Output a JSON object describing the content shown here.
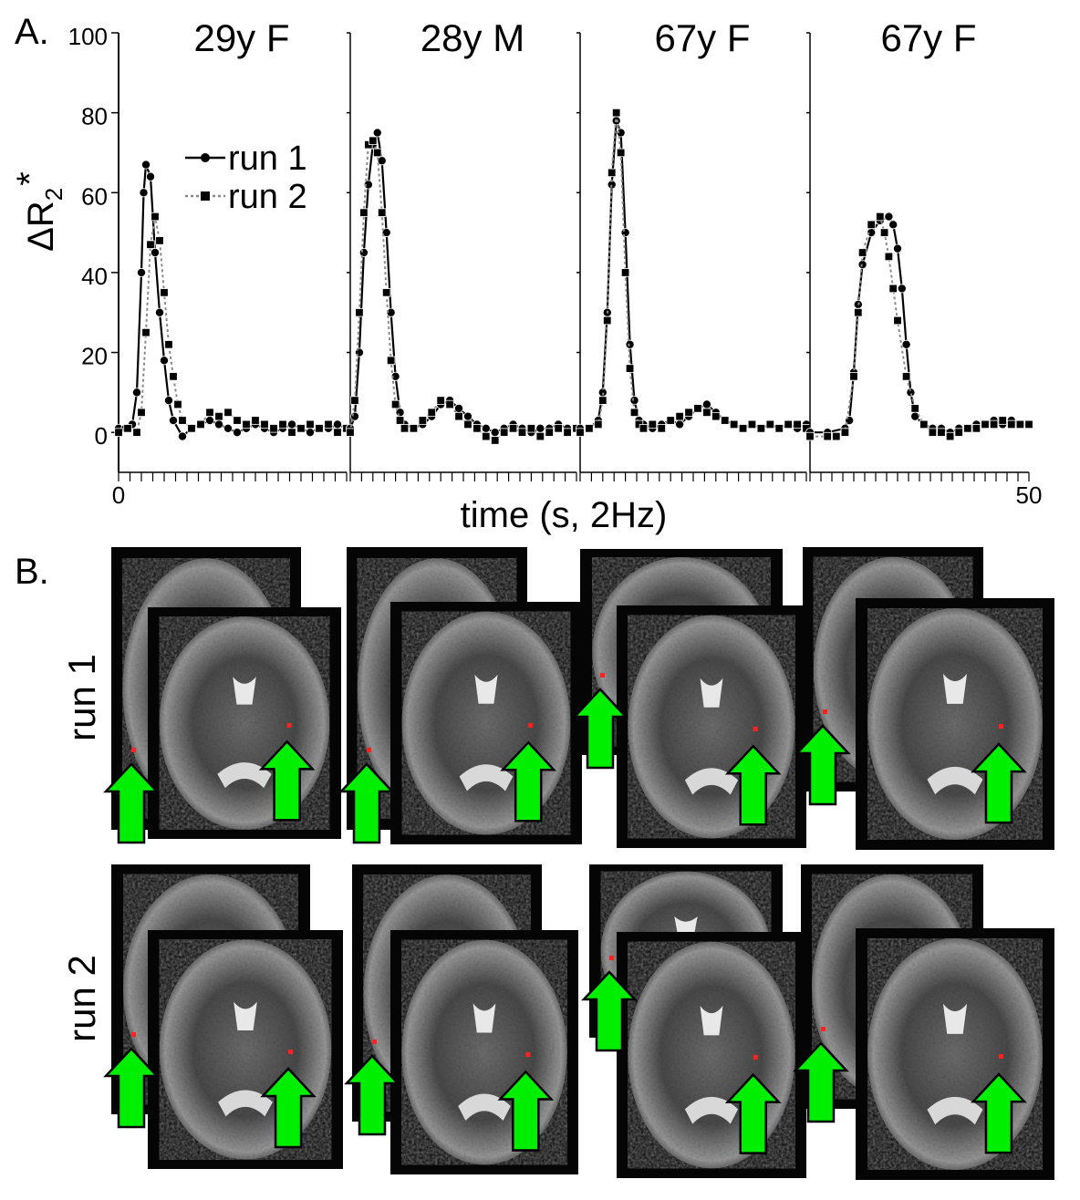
{
  "panel_a": {
    "label": "A."
  },
  "panel_b": {
    "label": "B."
  },
  "chart_data": [
    {
      "type": "line",
      "title": "29y F",
      "ylabel": "ΔR2*",
      "xlabel": "time (s, 2Hz)",
      "xlim": [
        0,
        50
      ],
      "ylim": [
        -10,
        100
      ],
      "yticks": [
        "0",
        "20",
        "40",
        "60",
        "80",
        "100"
      ],
      "xtick_labels": [
        "0"
      ],
      "legend": {
        "placement": "top-left",
        "entries": [
          "run 1",
          "run 2"
        ]
      },
      "series": [
        {
          "name": "run 1",
          "marker": "circle",
          "style": "solid",
          "x": [
            0,
            1.5,
            3,
            4,
            5,
            5.5,
            6,
            7,
            8,
            9,
            10,
            11,
            12,
            14,
            16,
            18,
            20,
            22,
            24,
            26,
            28,
            30,
            32,
            34,
            36,
            38,
            40,
            42,
            44,
            46,
            48,
            50
          ],
          "y": [
            1,
            1,
            2,
            10,
            40,
            60,
            67,
            64,
            45,
            30,
            18,
            8,
            3,
            -1,
            1,
            2,
            3,
            2,
            1,
            0,
            1,
            2,
            1,
            0,
            1,
            2,
            1,
            0,
            1,
            1,
            2,
            1
          ]
        },
        {
          "name": "run 2",
          "marker": "square",
          "style": "dotted",
          "x": [
            0,
            2,
            4,
            5,
            6,
            7,
            8,
            9,
            10,
            11,
            12,
            13,
            14,
            16,
            18,
            20,
            22,
            24,
            26,
            28,
            30,
            32,
            34,
            36,
            38,
            40,
            42,
            44,
            46,
            48,
            50
          ],
          "y": [
            0,
            1,
            0,
            5,
            25,
            47,
            54,
            48,
            35,
            22,
            14,
            7,
            3,
            1,
            2,
            5,
            4,
            5,
            3,
            2,
            3,
            2,
            1,
            2,
            0,
            1,
            2,
            1,
            2,
            0,
            1
          ]
        }
      ]
    },
    {
      "type": "line",
      "title": "28y M",
      "xlim": [
        0,
        50
      ],
      "ylim": [
        -10,
        100
      ],
      "series": [
        {
          "name": "run 1",
          "marker": "circle",
          "style": "solid",
          "x": [
            0,
            1,
            2,
            3,
            4,
            5,
            6,
            7,
            8,
            9,
            10,
            11,
            12,
            14,
            16,
            18,
            20,
            22,
            24,
            26,
            28,
            30,
            32,
            34,
            36,
            38,
            40,
            42,
            44,
            46,
            48,
            50
          ],
          "y": [
            1,
            4,
            20,
            45,
            62,
            72,
            75,
            68,
            50,
            30,
            14,
            5,
            2,
            1,
            2,
            4,
            7,
            8,
            6,
            4,
            2,
            1,
            0,
            1,
            2,
            1,
            0,
            1,
            1,
            2,
            1,
            1
          ]
        },
        {
          "name": "run 2",
          "marker": "square",
          "style": "dotted",
          "x": [
            0,
            1,
            2,
            3,
            4,
            5,
            6,
            7,
            8,
            9,
            10,
            11,
            12,
            14,
            16,
            18,
            20,
            22,
            24,
            26,
            28,
            30,
            32,
            34,
            36,
            38,
            40,
            42,
            44,
            46,
            48,
            50
          ],
          "y": [
            0,
            8,
            30,
            55,
            72,
            73,
            70,
            55,
            35,
            18,
            7,
            3,
            1,
            1,
            3,
            5,
            8,
            7,
            4,
            2,
            1,
            -1,
            -2,
            0,
            1,
            0,
            1,
            -1,
            0,
            1,
            0,
            1
          ]
        }
      ]
    },
    {
      "type": "line",
      "title": "67y F",
      "xlim": [
        0,
        50
      ],
      "ylim": [
        -10,
        100
      ],
      "series": [
        {
          "name": "run 1",
          "marker": "circle",
          "style": "solid",
          "x": [
            0,
            2,
            4,
            5,
            6,
            7,
            8,
            9,
            10,
            11,
            12,
            13,
            14,
            16,
            18,
            20,
            22,
            24,
            26,
            28,
            30,
            32,
            34,
            36,
            38,
            40,
            42,
            44,
            46,
            48,
            50
          ],
          "y": [
            1,
            1,
            3,
            10,
            30,
            62,
            78,
            75,
            50,
            22,
            8,
            3,
            2,
            1,
            2,
            3,
            2,
            4,
            6,
            7,
            5,
            3,
            2,
            1,
            2,
            1,
            2,
            1,
            2,
            1,
            2
          ]
        },
        {
          "name": "run 2",
          "marker": "square",
          "style": "dotted",
          "x": [
            0,
            2,
            4,
            5,
            6,
            7,
            8,
            9,
            10,
            11,
            12,
            13,
            14,
            16,
            18,
            20,
            22,
            24,
            26,
            28,
            30,
            32,
            34,
            36,
            38,
            40,
            42,
            44,
            46,
            48,
            50
          ],
          "y": [
            0,
            1,
            2,
            8,
            28,
            65,
            80,
            70,
            40,
            16,
            5,
            2,
            1,
            2,
            1,
            3,
            4,
            5,
            6,
            5,
            4,
            3,
            2,
            1,
            2,
            1,
            2,
            1,
            2,
            2,
            1
          ]
        }
      ]
    },
    {
      "type": "line",
      "title": "67y F",
      "xlim": [
        0,
        50
      ],
      "ylim": [
        -10,
        100
      ],
      "xtick_labels": [
        "50"
      ],
      "series": [
        {
          "name": "run 1",
          "marker": "circle",
          "style": "solid",
          "x": [
            0,
            4,
            8,
            9,
            10,
            11,
            12,
            14,
            16,
            18,
            19,
            20,
            21,
            22,
            23,
            24,
            26,
            28,
            30,
            32,
            34,
            36,
            38,
            40,
            42,
            44,
            46,
            48,
            50
          ],
          "y": [
            0,
            0,
            1,
            3,
            15,
            32,
            42,
            50,
            53,
            54,
            52,
            46,
            36,
            22,
            10,
            4,
            2,
            1,
            1,
            0,
            1,
            1,
            2,
            2,
            3,
            2,
            3,
            2,
            2
          ]
        },
        {
          "name": "run 2",
          "marker": "square",
          "style": "dotted",
          "x": [
            0,
            4,
            6,
            8,
            10,
            11,
            12,
            14,
            16,
            17,
            18,
            19,
            20,
            22,
            24,
            26,
            28,
            30,
            32,
            34,
            36,
            38,
            40,
            42,
            44,
            46,
            48,
            50
          ],
          "y": [
            -1,
            -1,
            -1,
            0,
            14,
            30,
            45,
            52,
            54,
            50,
            44,
            36,
            28,
            14,
            6,
            2,
            0,
            0,
            -1,
            0,
            1,
            1,
            2,
            2,
            3,
            2,
            2,
            2
          ]
        }
      ]
    }
  ],
  "panel_b_content": {
    "row_labels": [
      "run 1",
      "run 2"
    ],
    "columns": 4,
    "image_kind": "grayscale axial MRI brain slices, two overlapping per cell, red voxel dots and green arrows"
  }
}
